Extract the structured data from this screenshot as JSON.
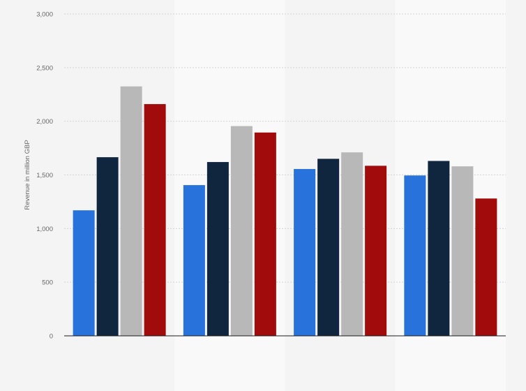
{
  "chart_data": {
    "type": "bar",
    "title": "",
    "xlabel": "",
    "ylabel": "Revenue in million GBP",
    "ylim": [
      0,
      3000
    ],
    "yticks": [
      0,
      500,
      1000,
      1500,
      2000,
      2500,
      3000
    ],
    "ytick_labels": [
      "0",
      "500",
      "1,000",
      "1,500",
      "2,000",
      "2,500",
      "3,000"
    ],
    "categories": [
      "",
      "",
      "",
      ""
    ],
    "grid": true,
    "legend": "none",
    "series": [
      {
        "color": "#2872dc",
        "values": [
          1170,
          1405,
          1555,
          1495
        ]
      },
      {
        "color": "#10263f",
        "values": [
          1665,
          1620,
          1650,
          1630
        ]
      },
      {
        "color": "#b8b8b8",
        "values": [
          2325,
          1955,
          1710,
          1580
        ]
      },
      {
        "color": "#a10b0b",
        "values": [
          2160,
          1895,
          1585,
          1280
        ]
      }
    ]
  }
}
